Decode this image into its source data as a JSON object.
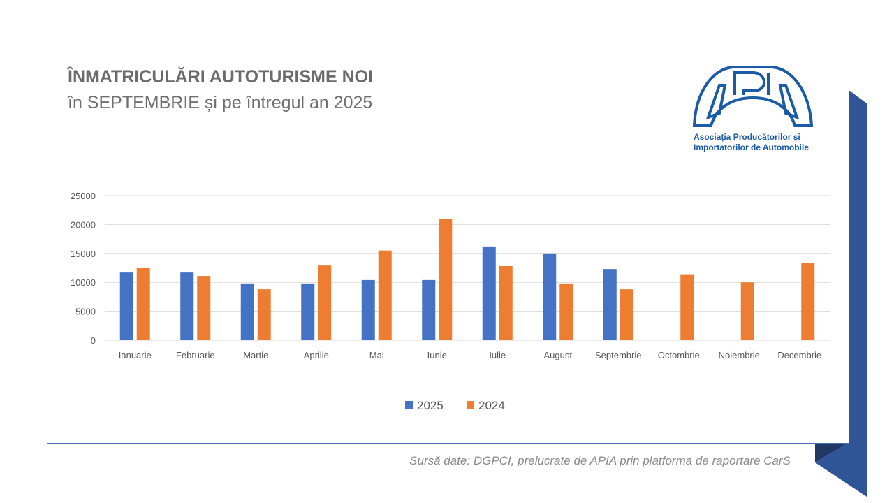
{
  "title": "ÎNMATRICULĂRI AUTOTURISME NOI",
  "subtitle": "în SEPTEMBRIE și pe întregul an 2025",
  "logo": {
    "letters": "APIA",
    "line1": "Asociația Producătorilor și",
    "line2": "Importatorilor de Automobile",
    "color": "#1a5aa6"
  },
  "source": "Sursă date: DGPCI, prelucrate de APIA prin platforma de raportare CarS",
  "chart_data": {
    "type": "bar",
    "categories": [
      "Ianuarie",
      "Februarie",
      "Martie",
      "Aprilie",
      "Mai",
      "Iunie",
      "Iulie",
      "August",
      "Septembrie",
      "Octombrie",
      "Noiembrie",
      "Decembrie"
    ],
    "series": [
      {
        "name": "2025",
        "color": "#4472c4",
        "values": [
          11700,
          11700,
          9800,
          9800,
          10400,
          10400,
          16200,
          15000,
          12300,
          null,
          null,
          null
        ]
      },
      {
        "name": "2024",
        "color": "#ed7d31",
        "values": [
          12500,
          11100,
          8800,
          12900,
          15500,
          21000,
          12800,
          9800,
          8800,
          11400,
          10000,
          13300
        ]
      }
    ],
    "yticks": [
      "0",
      "5000",
      "10000",
      "15000",
      "20000",
      "25000"
    ],
    "ylim": [
      0,
      25000
    ],
    "grid": true,
    "legend": "bottom"
  }
}
